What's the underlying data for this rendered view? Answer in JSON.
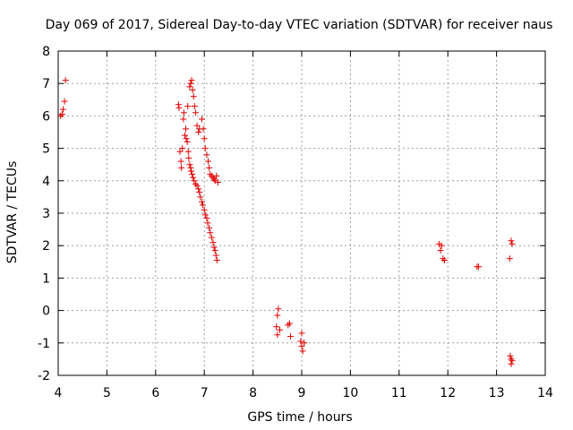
{
  "chart_data": {
    "type": "scatter",
    "title": "Day 069 of 2017, Sidereal Day-to-day VTEC variation (SDTVAR) for receiver naus",
    "xlabel": "GPS time / hours",
    "ylabel": "SDTVAR / TECUs",
    "xlim": [
      4,
      14
    ],
    "ylim": [
      -2,
      8
    ],
    "xticks": [
      "4",
      "5",
      "6",
      "7",
      "8",
      "9",
      "10",
      "11",
      "12",
      "13",
      "14"
    ],
    "yticks": [
      "-2",
      "-1",
      "0",
      "1",
      "2",
      "3",
      "4",
      "5",
      "6",
      "7",
      "8"
    ],
    "grid": true,
    "marker": "+",
    "series": [
      {
        "name": "SDTVAR",
        "color": "#e00000",
        "points": [
          [
            4.05,
            6.0
          ],
          [
            4.08,
            6.05
          ],
          [
            4.1,
            6.2
          ],
          [
            4.13,
            6.45
          ],
          [
            4.15,
            7.1
          ],
          [
            6.47,
            6.35
          ],
          [
            6.48,
            6.25
          ],
          [
            6.5,
            4.9
          ],
          [
            6.52,
            4.6
          ],
          [
            6.53,
            4.4
          ],
          [
            6.55,
            5.0
          ],
          [
            6.57,
            5.9
          ],
          [
            6.58,
            6.1
          ],
          [
            6.6,
            5.4
          ],
          [
            6.62,
            5.6
          ],
          [
            6.63,
            5.3
          ],
          [
            6.65,
            5.2
          ],
          [
            6.66,
            6.3
          ],
          [
            6.67,
            4.9
          ],
          [
            6.68,
            4.7
          ],
          [
            6.7,
            4.5
          ],
          [
            6.72,
            4.4
          ],
          [
            6.73,
            4.3
          ],
          [
            6.75,
            4.2
          ],
          [
            6.77,
            4.1
          ],
          [
            6.79,
            4.0
          ],
          [
            6.7,
            6.9
          ],
          [
            6.72,
            7.0
          ],
          [
            6.74,
            7.1
          ],
          [
            6.76,
            6.8
          ],
          [
            6.78,
            6.6
          ],
          [
            6.8,
            6.3
          ],
          [
            6.82,
            6.1
          ],
          [
            6.82,
            3.9
          ],
          [
            6.85,
            3.85
          ],
          [
            6.88,
            3.75
          ],
          [
            6.9,
            3.65
          ],
          [
            6.92,
            3.5
          ],
          [
            6.95,
            3.35
          ],
          [
            6.97,
            3.25
          ],
          [
            7.0,
            3.1
          ],
          [
            7.02,
            2.95
          ],
          [
            7.05,
            2.85
          ],
          [
            7.07,
            2.7
          ],
          [
            7.1,
            2.55
          ],
          [
            7.12,
            2.4
          ],
          [
            7.15,
            2.25
          ],
          [
            7.18,
            2.1
          ],
          [
            7.2,
            1.95
          ],
          [
            7.22,
            1.85
          ],
          [
            7.24,
            1.7
          ],
          [
            7.26,
            1.55
          ],
          [
            6.85,
            5.7
          ],
          [
            6.88,
            5.5
          ],
          [
            6.9,
            5.6
          ],
          [
            6.95,
            5.9
          ],
          [
            6.98,
            5.6
          ],
          [
            7.0,
            5.3
          ],
          [
            7.02,
            5.0
          ],
          [
            7.05,
            4.8
          ],
          [
            7.08,
            4.6
          ],
          [
            7.1,
            4.4
          ],
          [
            7.12,
            4.2
          ],
          [
            7.15,
            4.15
          ],
          [
            7.18,
            4.1
          ],
          [
            7.2,
            4.05
          ],
          [
            7.22,
            4.0
          ],
          [
            7.25,
            4.15
          ],
          [
            7.28,
            3.95
          ],
          [
            8.48,
            -0.5
          ],
          [
            8.5,
            -0.75
          ],
          [
            8.5,
            -0.15
          ],
          [
            8.52,
            0.05
          ],
          [
            8.55,
            -0.6
          ],
          [
            8.72,
            -0.45
          ],
          [
            8.75,
            -0.4
          ],
          [
            8.77,
            -0.8
          ],
          [
            8.98,
            -0.95
          ],
          [
            9.0,
            -1.1
          ],
          [
            9.0,
            -0.7
          ],
          [
            9.02,
            -1.25
          ],
          [
            9.05,
            -1.0
          ],
          [
            11.82,
            2.05
          ],
          [
            11.85,
            1.85
          ],
          [
            11.87,
            2.0
          ],
          [
            11.9,
            1.6
          ],
          [
            11.93,
            1.55
          ],
          [
            12.6,
            1.35
          ],
          [
            12.63,
            1.35
          ],
          [
            13.27,
            1.6
          ],
          [
            13.3,
            2.15
          ],
          [
            13.32,
            2.05
          ],
          [
            13.28,
            -1.4
          ],
          [
            13.3,
            -1.5
          ],
          [
            13.32,
            -1.55
          ],
          [
            13.3,
            -1.65
          ]
        ]
      }
    ]
  }
}
